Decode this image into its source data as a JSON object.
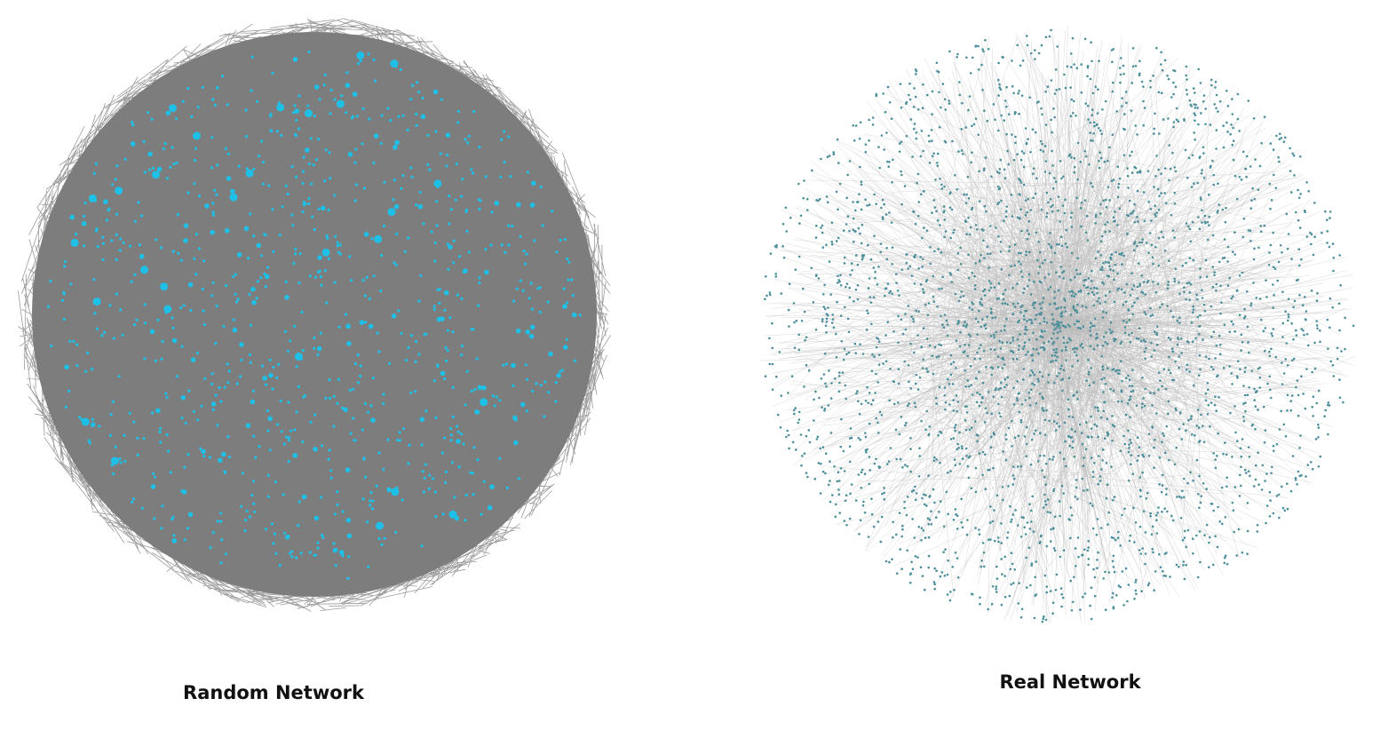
{
  "panels": {
    "random": {
      "caption": "Random Network",
      "node_color": "#1ec0e8",
      "edge_color": "#7a7a7a",
      "fill_color": "#7d7d7d"
    },
    "real": {
      "caption": "Real Network",
      "node_color": "#4b8f9a",
      "edge_color": "#b9b9b9"
    }
  }
}
